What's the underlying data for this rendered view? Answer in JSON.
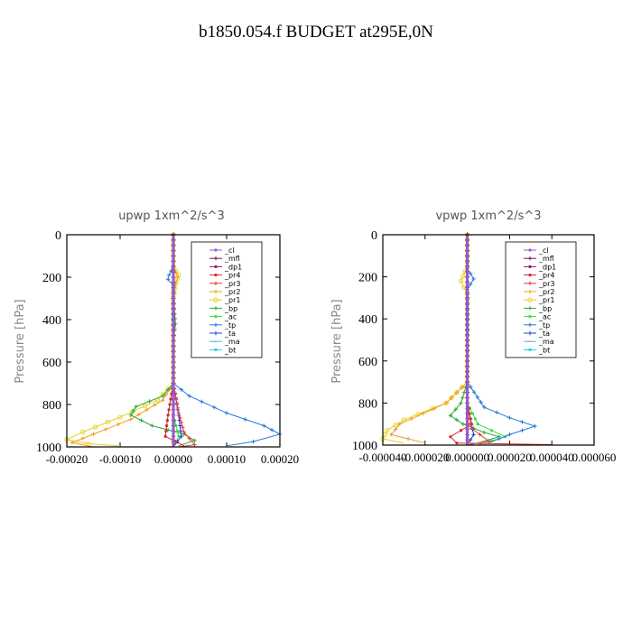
{
  "figure": {
    "title": "b1850.054.f  BUDGET at295E,0N"
  },
  "legend_entries": [
    {
      "name": "_cl",
      "color": "#9b59d0",
      "marker": "dot"
    },
    {
      "name": "_mfl",
      "color": "#7a1a4a",
      "marker": "plus"
    },
    {
      "name": "_dp1",
      "color": "#8b1a6b",
      "marker": "dot"
    },
    {
      "name": "_pr4",
      "color": "#d42828",
      "marker": "dot"
    },
    {
      "name": "_pr3",
      "color": "#e04040",
      "marker": "plus"
    },
    {
      "name": "_pr2",
      "color": "#f0a020",
      "marker": "plus"
    },
    {
      "name": "_pr1",
      "color": "#e8d020",
      "marker": "circle"
    },
    {
      "name": "_bp",
      "color": "#2eaa3a",
      "marker": "plus"
    },
    {
      "name": "_ac",
      "color": "#40e040",
      "marker": "dot"
    },
    {
      "name": "_tp",
      "color": "#2a7ad8",
      "marker": "plus"
    },
    {
      "name": "_ta",
      "color": "#2040d0",
      "marker": "plus"
    },
    {
      "name": "_ma",
      "color": "#60b0d8",
      "marker": "dash"
    },
    {
      "name": "_bt",
      "color": "#20d0e0",
      "marker": "dot"
    }
  ],
  "chart_data": [
    {
      "type": "line",
      "title": "upwp   1xm^2/s^3",
      "ylabel": "Pressure [hPa]",
      "xlabel": "",
      "xlim": [
        -0.0002,
        0.0002
      ],
      "ylim": [
        1000,
        0
      ],
      "xticks": [
        -0.0002,
        -0.0001,
        0.0,
        0.0001,
        0.0002
      ],
      "xtick_labels": [
        "-0.00020",
        "-0.00010",
        "0.00000",
        "0.00010",
        "0.00020"
      ],
      "yticks": [
        0,
        200,
        400,
        600,
        800,
        1000
      ],
      "ytick_labels": [
        "0",
        "200",
        "400",
        "600",
        "800",
        "1000"
      ],
      "legend_position": "top-right",
      "series": [
        {
          "name": "_pr1",
          "color": "#e8d020",
          "points": [
            [
              0.0,
              0
            ],
            [
              0.0,
              150
            ],
            [
              1e-05,
              190
            ],
            [
              5e-06,
              230
            ],
            [
              0.0,
              300
            ],
            [
              0.0,
              500
            ],
            [
              0.0,
              700
            ],
            [
              -3e-05,
              780
            ],
            [
              -0.0001,
              860
            ],
            [
              -0.00017,
              930
            ],
            [
              -0.0002,
              965
            ],
            [
              -0.00016,
              985
            ],
            [
              -0.0001,
              995
            ]
          ]
        },
        {
          "name": "_pr2",
          "color": "#f0a020",
          "points": [
            [
              0.0,
              0
            ],
            [
              0.0,
              150
            ],
            [
              8e-06,
              200
            ],
            [
              0.0,
              260
            ],
            [
              0.0,
              500
            ],
            [
              0.0,
              700
            ],
            [
              -2e-05,
              780
            ],
            [
              -8e-05,
              870
            ],
            [
              -0.00015,
              940
            ],
            [
              -0.00019,
              980
            ],
            [
              -0.00015,
              1000
            ]
          ]
        },
        {
          "name": "_bp",
          "color": "#2eaa3a",
          "points": [
            [
              0.0,
              0
            ],
            [
              0.0,
              300
            ],
            [
              4e-06,
              420
            ],
            [
              0.0,
              500
            ],
            [
              0.0,
              700
            ],
            [
              -2e-05,
              760
            ],
            [
              -7e-05,
              810
            ],
            [
              -8e-05,
              850
            ],
            [
              -4e-05,
              900
            ],
            [
              2e-05,
              940
            ],
            [
              4e-05,
              970
            ],
            [
              1e-05,
              995
            ]
          ]
        },
        {
          "name": "_ac",
          "color": "#40e040",
          "points": [
            [
              0.0,
              0
            ],
            [
              0.0,
              700
            ],
            [
              0.0,
              850
            ],
            [
              1e-05,
              950
            ],
            [
              0.0,
              1000
            ]
          ]
        },
        {
          "name": "_tp",
          "color": "#2a7ad8",
          "points": [
            [
              0.0,
              0
            ],
            [
              0.0,
              150
            ],
            [
              -8e-06,
              190
            ],
            [
              -1e-05,
              210
            ],
            [
              0.0,
              240
            ],
            [
              0.0,
              500
            ],
            [
              0.0,
              700
            ],
            [
              3e-05,
              760
            ],
            [
              0.0001,
              840
            ],
            [
              0.00017,
              900
            ],
            [
              0.0002,
              940
            ],
            [
              0.00015,
              975
            ],
            [
              0.0001,
              995
            ]
          ]
        },
        {
          "name": "_ta",
          "color": "#2040d0",
          "points": [
            [
              0.0,
              0
            ],
            [
              0.0,
              700
            ],
            [
              1e-05,
              850
            ],
            [
              1.5e-05,
              950
            ],
            [
              0.0,
              1000
            ]
          ]
        },
        {
          "name": "_pr4",
          "color": "#d42828",
          "points": [
            [
              0.0,
              0
            ],
            [
              0.0,
              700
            ],
            [
              -1e-05,
              850
            ],
            [
              -1.5e-05,
              950
            ],
            [
              2e-05,
              995
            ]
          ]
        },
        {
          "name": "_pr3",
          "color": "#e04040",
          "points": [
            [
              0.0,
              0
            ],
            [
              0.0,
              700
            ],
            [
              1e-05,
              840
            ],
            [
              2e-05,
              930
            ],
            [
              4e-05,
              990
            ],
            [
              1e-05,
              1000
            ]
          ]
        },
        {
          "name": "_mfl",
          "color": "#7a1a4a",
          "points": [
            [
              0.0,
              0
            ],
            [
              0.0,
              1000
            ]
          ]
        },
        {
          "name": "_dp1",
          "color": "#8b1a6b",
          "points": [
            [
              0.0,
              0
            ],
            [
              0.0,
              1000
            ]
          ]
        },
        {
          "name": "_cl",
          "color": "#9b59d0",
          "points": [
            [
              0.0,
              0
            ],
            [
              0.0,
              1000
            ]
          ]
        }
      ]
    },
    {
      "type": "line",
      "title": "vpwp   1xm^2/s^3",
      "ylabel": "Pressure [hPa]",
      "xlabel": "",
      "xlim": [
        -4e-05,
        6e-05
      ],
      "ylim": [
        1000,
        0
      ],
      "xticks": [
        -4e-05,
        -2e-05,
        0.0,
        2e-05,
        4e-05,
        6e-05
      ],
      "xtick_labels": [
        "-0.000040",
        "-0.000020",
        "0.000000",
        "0.000020",
        "0.000040",
        "0.000060"
      ],
      "yticks": [
        0,
        200,
        400,
        600,
        800,
        1000
      ],
      "ytick_labels": [
        "0",
        "200",
        "400",
        "600",
        "800",
        "1000"
      ],
      "legend_position": "top-right",
      "series": [
        {
          "name": "_pr1",
          "color": "#e8d020",
          "points": [
            [
              0.0,
              0
            ],
            [
              0.0,
              150
            ],
            [
              -3e-06,
              220
            ],
            [
              0.0,
              280
            ],
            [
              0.0,
              700
            ],
            [
              -1e-05,
              800
            ],
            [
              -3e-05,
              880
            ],
            [
              -3.8e-05,
              930
            ],
            [
              -4e-05,
              970
            ],
            [
              -3e-05,
              990
            ]
          ]
        },
        {
          "name": "_pr2",
          "color": "#f0a020",
          "points": [
            [
              0.0,
              0
            ],
            [
              0.0,
              700
            ],
            [
              -1e-05,
              800
            ],
            [
              -3.2e-05,
              900
            ],
            [
              -3.6e-05,
              950
            ],
            [
              -2e-05,
              990
            ]
          ]
        },
        {
          "name": "_bp",
          "color": "#2eaa3a",
          "points": [
            [
              0.0,
              0
            ],
            [
              0.0,
              700
            ],
            [
              -3e-06,
              800
            ],
            [
              -8e-06,
              860
            ],
            [
              -2e-06,
              900
            ],
            [
              8e-06,
              940
            ],
            [
              1.5e-05,
              960
            ],
            [
              5e-06,
              990
            ]
          ]
        },
        {
          "name": "_ac",
          "color": "#40e040",
          "points": [
            [
              0.0,
              0
            ],
            [
              0.0,
              800
            ],
            [
              5e-06,
              900
            ],
            [
              1.8e-05,
              960
            ],
            [
              5e-06,
              1000
            ]
          ]
        },
        {
          "name": "_tp",
          "color": "#2a7ad8",
          "points": [
            [
              0.0,
              0
            ],
            [
              0.0,
              160
            ],
            [
              3e-06,
              210
            ],
            [
              0.0,
              260
            ],
            [
              0.0,
              700
            ],
            [
              8e-06,
              820
            ],
            [
              2e-05,
              870
            ],
            [
              3.2e-05,
              910
            ],
            [
              2e-05,
              950
            ],
            [
              1e-05,
              990
            ]
          ]
        },
        {
          "name": "_ta",
          "color": "#2040d0",
          "points": [
            [
              0.0,
              0
            ],
            [
              0.0,
              800
            ],
            [
              3e-06,
              950
            ],
            [
              0.0,
              1000
            ]
          ]
        },
        {
          "name": "_pr4",
          "color": "#d42828",
          "points": [
            [
              0.0,
              0
            ],
            [
              0.0,
              800
            ],
            [
              2e-06,
              900
            ],
            [
              -8e-06,
              960
            ],
            [
              -5e-06,
              990
            ],
            [
              4e-05,
              998
            ]
          ]
        },
        {
          "name": "_pr3",
          "color": "#e04040",
          "points": [
            [
              0.0,
              0
            ],
            [
              0.0,
              800
            ],
            [
              2e-06,
              920
            ],
            [
              1e-05,
              980
            ],
            [
              0.0,
              1000
            ]
          ]
        },
        {
          "name": "_mfl",
          "color": "#7a1a4a",
          "points": [
            [
              0.0,
              0
            ],
            [
              0.0,
              1000
            ]
          ]
        },
        {
          "name": "_dp1",
          "color": "#8b1a6b",
          "points": [
            [
              0.0,
              0
            ],
            [
              0.0,
              1000
            ]
          ]
        },
        {
          "name": "_cl",
          "color": "#9b59d0",
          "points": [
            [
              0.0,
              0
            ],
            [
              0.0,
              1000
            ]
          ]
        }
      ]
    }
  ]
}
